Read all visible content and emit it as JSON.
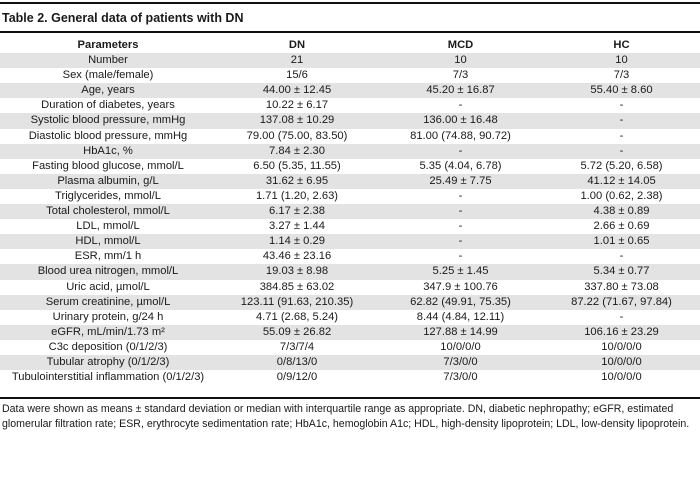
{
  "title": "Table 2. General data of patients with DN",
  "columns": [
    "Parameters",
    "DN",
    "MCD",
    "HC"
  ],
  "rows": [
    [
      "Number",
      "21",
      "10",
      "10"
    ],
    [
      "Sex (male/female)",
      "15/6",
      "7/3",
      "7/3"
    ],
    [
      "Age, years",
      "44.00 ± 12.45",
      "45.20 ± 16.87",
      "55.40 ± 8.60"
    ],
    [
      "Duration of diabetes, years",
      "10.22 ± 6.17",
      "-",
      "-"
    ],
    [
      "Systolic blood pressure, mmHg",
      "137.08 ± 10.29",
      "136.00 ± 16.48",
      "-"
    ],
    [
      "Diastolic blood pressure, mmHg",
      "79.00 (75.00, 83.50)",
      "81.00 (74.88, 90.72)",
      "-"
    ],
    [
      "HbA1c, %",
      "7.84 ± 2.30",
      "-",
      "-"
    ],
    [
      "Fasting blood glucose, mmol/L",
      "6.50 (5.35, 11.55)",
      "5.35 (4.04, 6.78)",
      "5.72 (5.20, 6.58)"
    ],
    [
      "Plasma albumin, g/L",
      "31.62 ± 6.95",
      "25.49 ± 7.75",
      "41.12 ± 14.05"
    ],
    [
      "Triglycerides, mmol/L",
      "1.71 (1.20, 2.63)",
      "-",
      "1.00 (0.62, 2.38)"
    ],
    [
      "Total cholesterol, mmol/L",
      "6.17 ± 2.38",
      "-",
      "4.38 ± 0.89"
    ],
    [
      "LDL, mmol/L",
      "3.27 ± 1.44",
      "-",
      "2.66 ± 0.69"
    ],
    [
      "HDL, mmol/L",
      "1.14 ± 0.29",
      "-",
      "1.01 ± 0.65"
    ],
    [
      "ESR, mm/1 h",
      "43.46 ± 23.16",
      "-",
      "-"
    ],
    [
      "Blood urea nitrogen, mmol/L",
      "19.03 ± 8.98",
      "5.25 ± 1.45",
      "5.34 ± 0.77"
    ],
    [
      "Uric acid, µmol/L",
      "384.85 ± 63.02",
      "347.9 ± 100.76",
      "337.80 ± 73.08"
    ],
    [
      "Serum creatinine, µmol/L",
      "123.11 (91.63, 210.35)",
      "62.82 (49.91, 75.35)",
      "87.22 (71.67, 97.84)"
    ],
    [
      "Urinary protein, g/24 h",
      "4.71 (2.68, 5.24)",
      "8.44 (4.84, 12.11)",
      "-"
    ],
    [
      "eGFR, mL/min/1.73 m²",
      "55.09 ± 26.82",
      "127.88 ± 14.99",
      "106.16 ± 23.29"
    ],
    [
      "C3c deposition (0/1/2/3)",
      "7/3/7/4",
      "10/0/0/0",
      "10/0/0/0"
    ],
    [
      "Tubular atrophy (0/1/2/3)",
      "0/8/13/0",
      "7/3/0/0",
      "10/0/0/0"
    ],
    [
      "Tubulointerstitial inflammation (0/1/2/3)",
      "0/9/12/0",
      "7/3/0/0",
      "10/0/0/0"
    ]
  ],
  "footnote": "Data were shown as means ± standard deviation or median with interquartile range as appropriate. DN, diabetic nephropathy; eGFR, estimated glomerular filtration rate; ESR, erythrocyte sedimentation rate; HbA1c, hemoglobin A1c; HDL, high-density lipoprotein; LDL, low-density lipoprotein."
}
